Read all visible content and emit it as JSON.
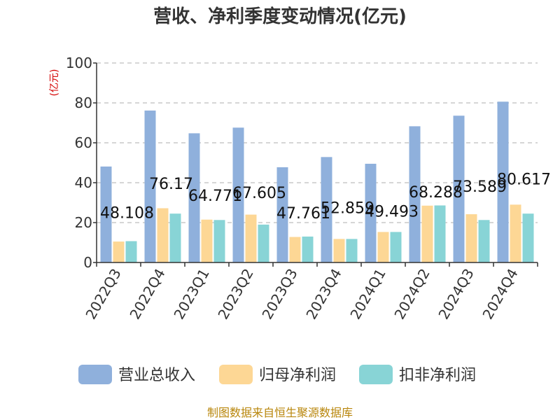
{
  "chart_data": {
    "type": "bar",
    "title": "营收、净利季度变动情况(亿元)",
    "ylabel": "(亿元)",
    "ylim": [
      0,
      100
    ],
    "yticks": [
      0,
      20,
      40,
      60,
      80,
      100
    ],
    "grid": true,
    "legend_position": "bottom",
    "categories": [
      "2022Q3",
      "2022Q4",
      "2023Q1",
      "2023Q2",
      "2023Q3",
      "2023Q4",
      "2024Q1",
      "2024Q2",
      "2024Q3",
      "2024Q4"
    ],
    "series": [
      {
        "name": "营业总收入",
        "color": "#8fb0dc",
        "values": [
          48.108,
          76.17,
          64.771,
          67.605,
          47.761,
          52.859,
          49.493,
          68.288,
          73.589,
          80.617
        ],
        "data_labels": [
          "48.108",
          "76.17",
          "64.771",
          "67.605",
          "47.761",
          "52.859",
          "49.493",
          "68.288",
          "73.589",
          "80.617"
        ]
      },
      {
        "name": "归母净利润",
        "color": "#fdd795",
        "values": [
          10.5,
          27.2,
          21.5,
          24.0,
          12.8,
          11.8,
          15.3,
          28.5,
          24.2,
          29.0
        ]
      },
      {
        "name": "扣非净利润",
        "color": "#88d4d6",
        "values": [
          10.7,
          24.5,
          21.3,
          19.0,
          13.0,
          11.8,
          15.3,
          28.6,
          21.3,
          24.5
        ]
      }
    ]
  },
  "footer": {
    "source_text": "制图数据来自恒生聚源数据库"
  }
}
